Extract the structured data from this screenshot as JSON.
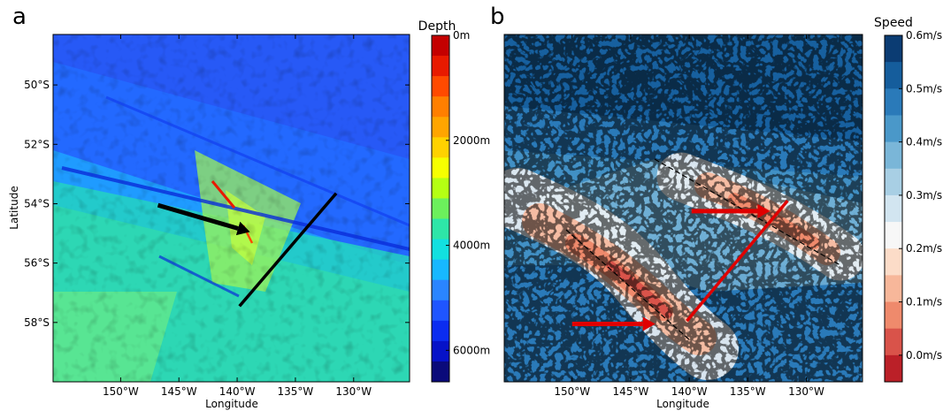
{
  "chart_data": [
    {
      "panel_label": "a",
      "type": "heatmap",
      "title": "",
      "xlabel": "Longitude",
      "ylabel": "Latitude",
      "x_ticks": [
        "150°W",
        "145°W",
        "140°W",
        "135°W",
        "130°W"
      ],
      "x_tick_values": [
        -150,
        -145,
        -140,
        -135,
        -130
      ],
      "y_ticks": [
        "50°S",
        "52°S",
        "54°S",
        "56°S",
        "58°S"
      ],
      "y_tick_values": [
        -50,
        -52,
        -54,
        -56,
        -58
      ],
      "xlim": [
        -155.8,
        -125.2
      ],
      "ylim": [
        -60,
        -48.3
      ],
      "colorbar": {
        "title": "Depth",
        "tick_labels": [
          "0m",
          "2000m",
          "4000m",
          "6000m"
        ],
        "tick_values": [
          0,
          2000,
          4000,
          6000
        ],
        "range": [
          0,
          6600
        ],
        "colors": [
          "#c40000",
          "#e81a00",
          "#ff4a00",
          "#ff7f00",
          "#ffa500",
          "#ffd200",
          "#f6ff00",
          "#b5ff13",
          "#6cf05c",
          "#2ee6a8",
          "#12e0e0",
          "#17b8ff",
          "#2a85ff",
          "#1f55ff",
          "#0b2cf0",
          "#0612c8",
          "#0a0a7a"
        ]
      },
      "annotations": [
        {
          "type": "arrow",
          "color": "#000000",
          "from": [
            -146.8,
            -54.05
          ],
          "to": [
            -138.9,
            -54.95
          ]
        },
        {
          "type": "line",
          "color": "#000000",
          "from": [
            -139.8,
            -57.45
          ],
          "to": [
            -131.5,
            -53.65
          ]
        }
      ]
    },
    {
      "panel_label": "b",
      "type": "heatmap",
      "title": "",
      "xlabel": "Longitude",
      "ylabel": "",
      "x_ticks": [
        "150°W",
        "145°W",
        "140°W",
        "135°W",
        "130°W"
      ],
      "x_tick_values": [
        -150,
        -145,
        -140,
        -135,
        -130
      ],
      "xlim": [
        -155.8,
        -125.2
      ],
      "ylim": [
        -60,
        -48.3
      ],
      "colorbar": {
        "title": "Speed",
        "tick_labels": [
          "0.0m/s",
          "0.1m/s",
          "0.2m/s",
          "0.3m/s",
          "0.4m/s",
          "0.5m/s",
          "0.6m/s"
        ],
        "tick_values": [
          0.0,
          0.1,
          0.2,
          0.3,
          0.4,
          0.5,
          0.6
        ],
        "range": [
          -0.05,
          0.6
        ],
        "colors": [
          "#0b3c73",
          "#155d9c",
          "#2a7ab9",
          "#4a98c9",
          "#7ab6d8",
          "#a8cfe4",
          "#d2e5f0",
          "#f7f7f7",
          "#fcdcc8",
          "#f7b79a",
          "#ef8a6c",
          "#d9534a",
          "#bb2028"
        ]
      },
      "annotations": [
        {
          "type": "arrow",
          "color": "#e00000",
          "from": [
            -150.0,
            -58.05
          ],
          "to": [
            -142.9,
            -58.05
          ]
        },
        {
          "type": "arrow",
          "color": "#e00000",
          "from": [
            -139.8,
            -54.25
          ],
          "to": [
            -133.1,
            -54.25
          ]
        },
        {
          "type": "line",
          "color": "#e00000",
          "from": [
            -140.2,
            -57.95
          ],
          "to": [
            -131.6,
            -53.9
          ]
        }
      ]
    }
  ]
}
